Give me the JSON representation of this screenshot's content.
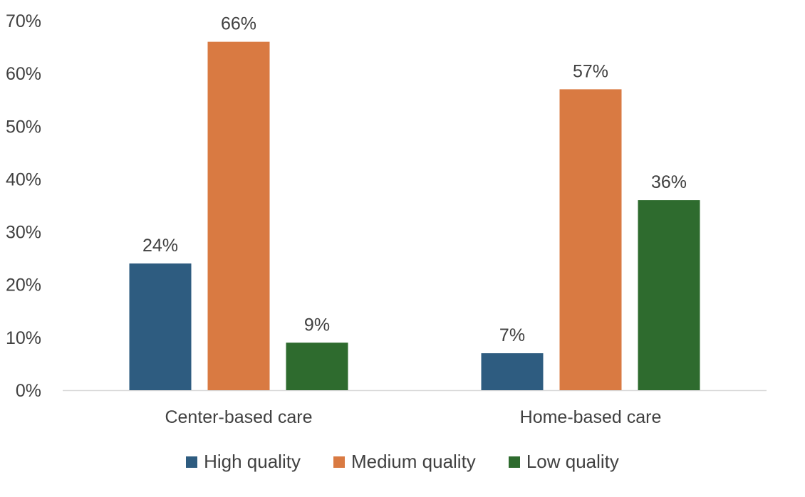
{
  "chart_data": {
    "type": "bar",
    "categories": [
      "Center-based care",
      "Home-based care"
    ],
    "series": [
      {
        "name": "High quality",
        "values": [
          24,
          7
        ],
        "color": "#2E5C80"
      },
      {
        "name": "Medium quality",
        "values": [
          66,
          57
        ],
        "color": "#D97A42"
      },
      {
        "name": "Low quality",
        "values": [
          9,
          36
        ],
        "color": "#2E6B2E"
      }
    ],
    "data_labels": [
      [
        "24%",
        "7%"
      ],
      [
        "66%",
        "57%"
      ],
      [
        "9%",
        "36%"
      ]
    ],
    "yticks": [
      "0%",
      "10%",
      "20%",
      "30%",
      "40%",
      "50%",
      "60%",
      "70%"
    ],
    "ylim": [
      0,
      70
    ],
    "unit": "%",
    "grid": false,
    "legend_position": "bottom"
  }
}
